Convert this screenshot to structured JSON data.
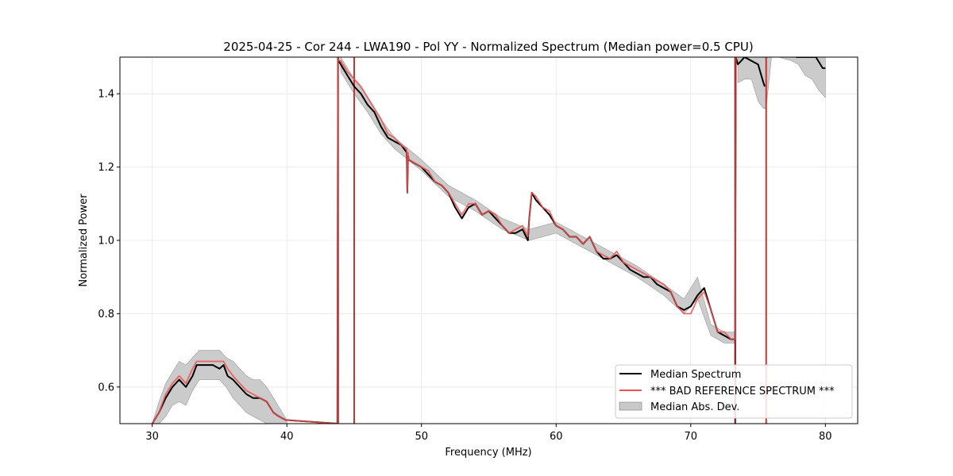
{
  "chart_data": {
    "type": "line",
    "title": "2025-04-25 - Cor 244 - LWA190 - Pol YY - Normalized Spectrum (Median power=0.5 CPU)",
    "xlabel": "Frequency (MHz)",
    "ylabel": "Normalized Power",
    "xlim": [
      27.6,
      82.4
    ],
    "ylim": [
      0.5,
      1.5
    ],
    "xticks": [
      30,
      40,
      50,
      60,
      70,
      80
    ],
    "xtick_labels": [
      "30",
      "40",
      "50",
      "60",
      "70",
      "80"
    ],
    "yticks": [
      0.6,
      0.8,
      1.0,
      1.2,
      1.4
    ],
    "ytick_labels": [
      "0.6",
      "0.8",
      "1.0",
      "1.2",
      "1.4"
    ],
    "grid": true,
    "legend_position": "bottom-right",
    "legend": [
      {
        "label": "Median Spectrum",
        "kind": "line",
        "color": "#000000"
      },
      {
        "label": "*** BAD REFERENCE SPECTRUM ***",
        "kind": "line",
        "color": "#f05050"
      },
      {
        "label": "Median Abs. Dev.",
        "kind": "band",
        "color": "#c8c8c8"
      }
    ],
    "series": [
      {
        "name": "Median Spectrum",
        "color": "#000000",
        "x": [
          30.0,
          30.5,
          31.0,
          31.5,
          32.0,
          32.5,
          33.0,
          33.3,
          33.5,
          34.0,
          34.5,
          35.0,
          35.3,
          35.6,
          36.0,
          36.5,
          37.0,
          37.5,
          38.0,
          38.5,
          39.0,
          39.4,
          39.9,
          43.75,
          43.8,
          43.85,
          44.0,
          44.5,
          45.0,
          45.5,
          46.0,
          46.5,
          47.0,
          47.5,
          48.0,
          48.5,
          48.9,
          48.95,
          49.0,
          49.05,
          49.5,
          50.0,
          50.5,
          51.0,
          51.5,
          52.0,
          52.5,
          53.0,
          53.5,
          54.0,
          54.5,
          55.0,
          55.5,
          56.0,
          56.5,
          57.0,
          57.5,
          57.9,
          58.0,
          58.2,
          58.5,
          59.0,
          59.5,
          60.0,
          60.5,
          61.0,
          61.5,
          62.0,
          62.5,
          63.0,
          63.5,
          64.0,
          64.5,
          65.0,
          65.5,
          66.0,
          66.5,
          67.0,
          67.5,
          68.0,
          68.5,
          69.0,
          69.5,
          70.0,
          70.5,
          71.0,
          71.5,
          72.0,
          72.5,
          73.0,
          73.2,
          73.3,
          73.35,
          73.5,
          74.0,
          74.5,
          75.0,
          75.4,
          75.5
        ],
        "values": [
          0.5,
          0.53,
          0.57,
          0.6,
          0.62,
          0.6,
          0.63,
          0.66,
          0.66,
          0.66,
          0.66,
          0.65,
          0.66,
          0.63,
          0.62,
          0.6,
          0.58,
          0.57,
          0.57,
          0.56,
          0.53,
          0.52,
          0.51,
          0.5,
          1.5,
          1.49,
          1.48,
          1.45,
          1.42,
          1.4,
          1.37,
          1.35,
          1.31,
          1.28,
          1.27,
          1.26,
          1.24,
          1.13,
          1.23,
          1.22,
          1.21,
          1.2,
          1.18,
          1.16,
          1.15,
          1.13,
          1.09,
          1.06,
          1.09,
          1.1,
          1.07,
          1.08,
          1.06,
          1.04,
          1.02,
          1.02,
          1.03,
          1.0,
          1.06,
          1.13,
          1.11,
          1.09,
          1.07,
          1.04,
          1.03,
          1.01,
          1.01,
          0.99,
          1.01,
          0.97,
          0.95,
          0.95,
          0.96,
          0.94,
          0.92,
          0.91,
          0.9,
          0.9,
          0.88,
          0.87,
          0.86,
          0.82,
          0.81,
          0.82,
          0.85,
          0.87,
          0.81,
          0.75,
          0.74,
          0.73,
          0.73,
          0.73,
          1.5,
          1.48,
          1.5,
          1.49,
          1.48,
          1.43,
          1.42
        ]
      },
      {
        "name": "Median Spectrum (upper segment)",
        "color": "#000000",
        "x": [
          77.8,
          78.3,
          78.8,
          79.3,
          79.8,
          80.0
        ],
        "values": [
          1.5,
          1.5,
          1.5,
          1.5,
          1.47,
          1.47
        ]
      },
      {
        "name": "*** BAD REFERENCE SPECTRUM ***",
        "color": "#f05050",
        "x": [
          30.0,
          30.5,
          31.0,
          31.5,
          32.0,
          32.5,
          33.0,
          33.3,
          33.5,
          34.0,
          34.5,
          35.0,
          35.3,
          35.6,
          36.0,
          36.5,
          37.0,
          37.5,
          38.0,
          38.5,
          39.0,
          39.4,
          39.9,
          43.75,
          43.8,
          43.85,
          44.0,
          44.5,
          45.0,
          45.5,
          46.0,
          46.5,
          47.0,
          47.5,
          48.0,
          48.5,
          48.9,
          48.95,
          49.0,
          49.05,
          49.5,
          50.0,
          50.5,
          51.0,
          51.5,
          52.0,
          52.5,
          53.0,
          53.5,
          54.0,
          54.5,
          55.0,
          55.5,
          56.0,
          56.5,
          57.0,
          57.5,
          57.9,
          58.0,
          58.2,
          58.5,
          59.0,
          59.5,
          60.0,
          60.5,
          61.0,
          61.5,
          62.0,
          62.5,
          63.0,
          63.5,
          64.0,
          64.5,
          65.0,
          65.5,
          66.0,
          66.5,
          67.0,
          67.5,
          68.0,
          68.5,
          69.0,
          69.5,
          70.0,
          70.5,
          71.0,
          71.5,
          72.0,
          72.5,
          73.0,
          73.2,
          73.3,
          73.35
        ],
        "values": [
          0.5,
          0.53,
          0.58,
          0.61,
          0.63,
          0.61,
          0.65,
          0.67,
          0.67,
          0.67,
          0.67,
          0.67,
          0.67,
          0.65,
          0.63,
          0.61,
          0.59,
          0.58,
          0.57,
          0.56,
          0.53,
          0.52,
          0.51,
          0.5,
          1.5,
          1.49,
          1.49,
          1.46,
          1.44,
          1.42,
          1.39,
          1.36,
          1.33,
          1.29,
          1.28,
          1.26,
          1.25,
          1.13,
          1.24,
          1.22,
          1.21,
          1.2,
          1.19,
          1.16,
          1.15,
          1.13,
          1.1,
          1.07,
          1.1,
          1.1,
          1.07,
          1.08,
          1.07,
          1.04,
          1.02,
          1.03,
          1.04,
          1.01,
          1.06,
          1.13,
          1.12,
          1.09,
          1.08,
          1.04,
          1.03,
          1.01,
          1.01,
          0.99,
          1.01,
          0.97,
          0.96,
          0.95,
          0.97,
          0.94,
          0.93,
          0.92,
          0.91,
          0.9,
          0.89,
          0.88,
          0.86,
          0.82,
          0.8,
          0.8,
          0.84,
          0.86,
          0.81,
          0.75,
          0.75,
          0.73,
          0.73,
          0.73,
          1.5
        ]
      }
    ],
    "bands": [
      {
        "name": "Median Abs. Dev.",
        "color": "#c8c8c8",
        "x": [
          30.0,
          30.5,
          31.0,
          31.5,
          32.0,
          32.5,
          33.0,
          33.5,
          34.0,
          34.5,
          35.0,
          35.5,
          36.0,
          36.5,
          37.0,
          37.5,
          38.0,
          38.5,
          39.0,
          39.5,
          40.0
        ],
        "low": [
          0.5,
          0.5,
          0.52,
          0.55,
          0.56,
          0.55,
          0.59,
          0.62,
          0.62,
          0.62,
          0.62,
          0.6,
          0.57,
          0.55,
          0.53,
          0.52,
          0.51,
          0.5,
          0.5,
          0.5,
          0.5
        ],
        "high": [
          0.5,
          0.56,
          0.61,
          0.64,
          0.67,
          0.66,
          0.68,
          0.7,
          0.7,
          0.7,
          0.7,
          0.68,
          0.67,
          0.65,
          0.63,
          0.62,
          0.62,
          0.6,
          0.57,
          0.54,
          0.51
        ]
      },
      {
        "name": "Median Abs. Dev. (main)",
        "color": "#c8c8c8",
        "x": [
          44.0,
          45.0,
          46.0,
          47.0,
          48.0,
          49.0,
          50.0,
          52.0,
          54.0,
          56.0,
          58.0,
          60.0,
          62.0,
          64.0,
          66.0,
          68.0,
          69.5,
          70.5,
          71.5,
          72.5,
          73.3
        ],
        "low": [
          1.46,
          1.4,
          1.35,
          1.29,
          1.25,
          1.22,
          1.19,
          1.12,
          1.08,
          1.03,
          1.0,
          1.02,
          0.98,
          0.94,
          0.9,
          0.85,
          0.8,
          0.84,
          0.74,
          0.72,
          0.72
        ],
        "high": [
          1.5,
          1.44,
          1.39,
          1.33,
          1.28,
          1.25,
          1.22,
          1.15,
          1.11,
          1.06,
          1.03,
          1.05,
          1.01,
          0.97,
          0.93,
          0.88,
          0.84,
          0.9,
          0.77,
          0.75,
          0.75
        ]
      },
      {
        "name": "Median Abs. Dev. (upper)",
        "color": "#c8c8c8",
        "x": [
          73.5,
          74.0,
          74.5,
          75.0,
          75.4,
          75.6,
          76.0,
          76.5,
          77.5,
          78.0,
          78.5,
          79.0,
          79.5,
          80.0
        ],
        "low": [
          1.43,
          1.44,
          1.44,
          1.38,
          1.36,
          1.36,
          1.5,
          1.5,
          1.49,
          1.48,
          1.45,
          1.44,
          1.41,
          1.39
        ],
        "high": [
          1.5,
          1.5,
          1.5,
          1.5,
          1.5,
          1.5,
          1.5,
          1.5,
          1.5,
          1.5,
          1.5,
          1.5,
          1.5,
          1.5
        ]
      }
    ],
    "spikes": [
      {
        "x": 43.8,
        "color": "#8b0000"
      },
      {
        "x": 45.0,
        "color": "#c83232"
      },
      {
        "x": 73.3,
        "color": "#8b0000"
      },
      {
        "x": 75.6,
        "color": "#c83232"
      }
    ]
  }
}
